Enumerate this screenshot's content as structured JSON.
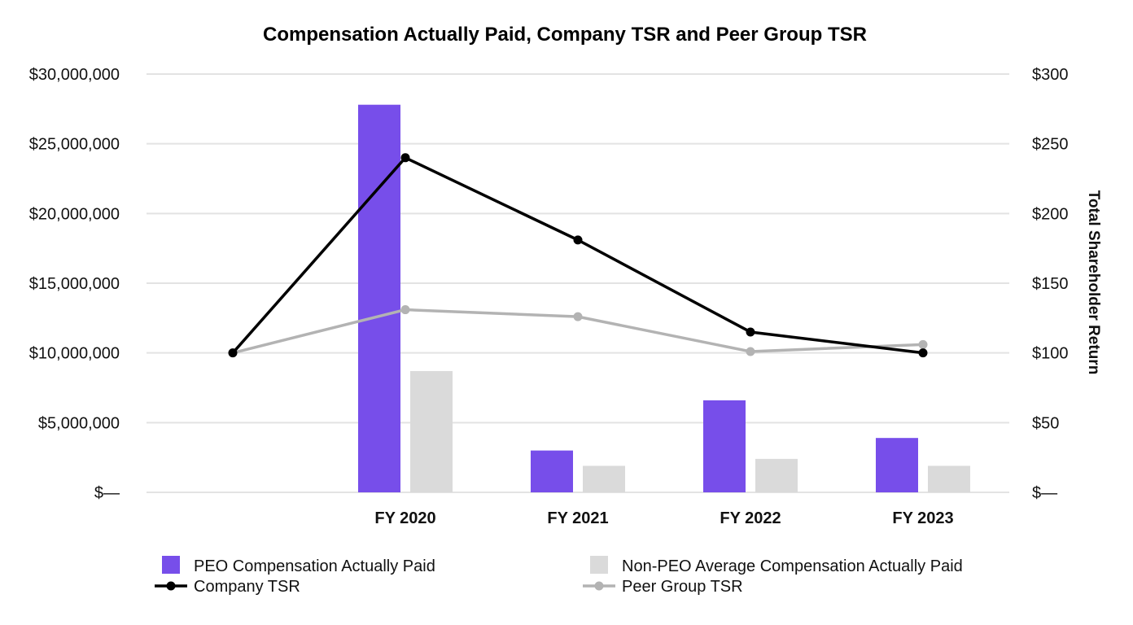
{
  "chart_data": {
    "type": "bar",
    "title": "Compensation Actually Paid, Company TSR and Peer Group TSR",
    "categories": [
      "",
      "FY 2020",
      "FY 2021",
      "FY 2022",
      "FY 2023"
    ],
    "left_axis": {
      "ylim": [
        0,
        30000000
      ],
      "ticks": [
        0,
        5000000,
        10000000,
        15000000,
        20000000,
        25000000,
        30000000
      ],
      "tick_labels": [
        "$—",
        "$5,000,000",
        "$10,000,000",
        "$15,000,000",
        "$20,000,000",
        "$25,000,000",
        "$30,000,000"
      ]
    },
    "right_axis": {
      "label": "Total Shareholder Return",
      "ylim": [
        0,
        300
      ],
      "ticks": [
        0,
        50,
        100,
        150,
        200,
        250,
        300
      ],
      "tick_labels": [
        "$—",
        "$50",
        "$100",
        "$150",
        "$200",
        "$250",
        "$300"
      ]
    },
    "grid": true,
    "legend_position": "bottom",
    "series": [
      {
        "name": "PEO Compensation Actually Paid",
        "kind": "bar",
        "axis": "left",
        "color": "#774EEA",
        "values": [
          null,
          27800000,
          3000000,
          6600000,
          3900000
        ]
      },
      {
        "name": "Non-PEO Average Compensation Actually Paid",
        "kind": "bar",
        "axis": "left",
        "color": "#DADADA",
        "values": [
          null,
          8700000,
          1900000,
          2400000,
          1900000
        ]
      },
      {
        "name": "Company TSR",
        "kind": "line",
        "axis": "right",
        "color": "#000000",
        "values": [
          100,
          240,
          181,
          115,
          100
        ]
      },
      {
        "name": "Peer Group TSR",
        "kind": "line",
        "axis": "right",
        "color": "#B3B3B3",
        "values": [
          100,
          131,
          126,
          101,
          106
        ]
      }
    ]
  }
}
